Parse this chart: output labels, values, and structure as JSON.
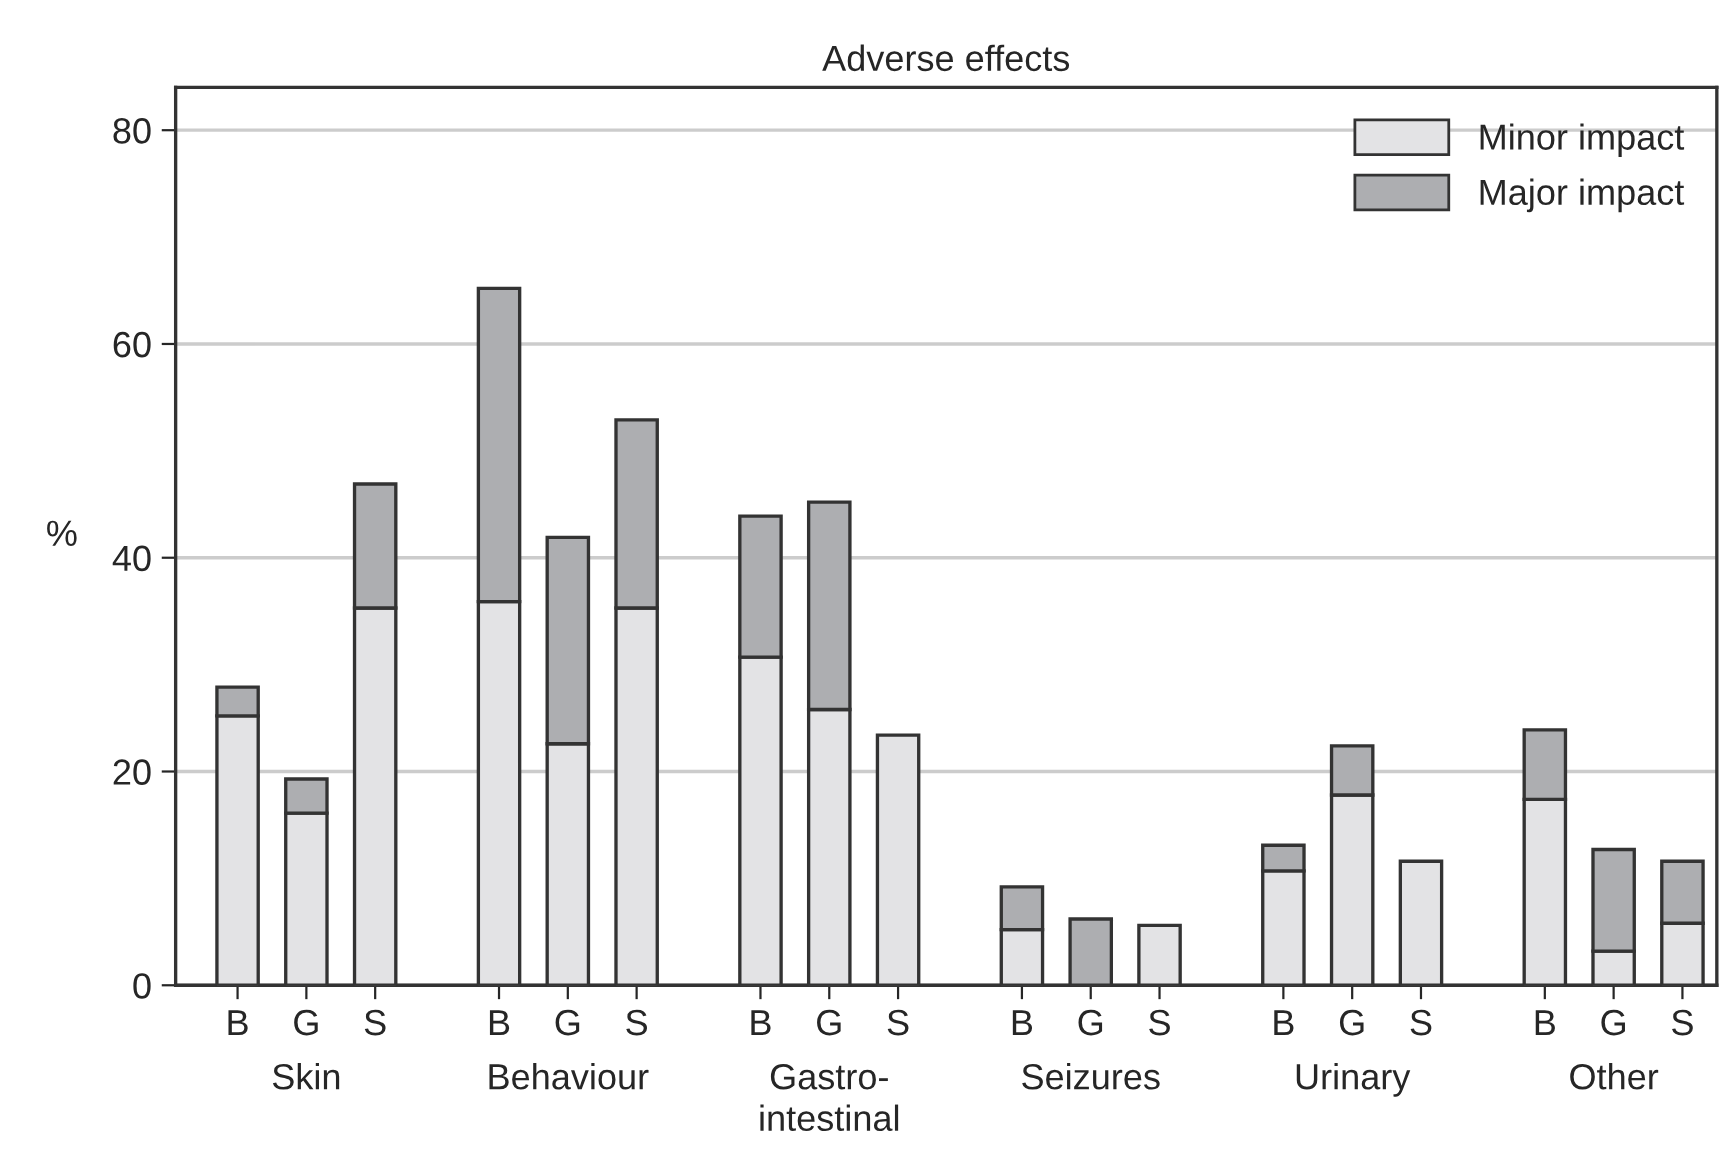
{
  "chart_data": {
    "type": "bar",
    "title": "Adverse effects",
    "ylabel": "%",
    "stacked": true,
    "categories": [
      "B",
      "G",
      "S",
      "B",
      "G",
      "S",
      "B",
      "G",
      "S",
      "B",
      "G",
      "S",
      "B",
      "G",
      "S",
      "B",
      "G",
      "S"
    ],
    "annotations": [
      "Skin",
      "Behaviour",
      "Gastro-\nintestinal",
      "Seizures",
      "Urinary",
      "Other"
    ],
    "series": [
      {
        "name": "Minor impact",
        "color": "#e3e3e5",
        "values": [
          25.2,
          16.1,
          35.3,
          35.9,
          22.6,
          35.3,
          30.7,
          25.8,
          23.4,
          5.2,
          null,
          5.6,
          10.7,
          17.8,
          11.6,
          17.4,
          3.2,
          5.8
        ]
      },
      {
        "name": "Major impact",
        "color": "#adaeb1",
        "values": [
          2.7,
          3.2,
          11.6,
          29.3,
          19.3,
          17.6,
          13.2,
          19.4,
          null,
          4.0,
          6.2,
          null,
          2.4,
          4.6,
          null,
          6.5,
          9.5,
          5.8
        ]
      }
    ],
    "ylim": [
      0,
      84
    ],
    "yticks": [
      0,
      20,
      40,
      60,
      80
    ],
    "grid": "y",
    "legend": "top right"
  }
}
